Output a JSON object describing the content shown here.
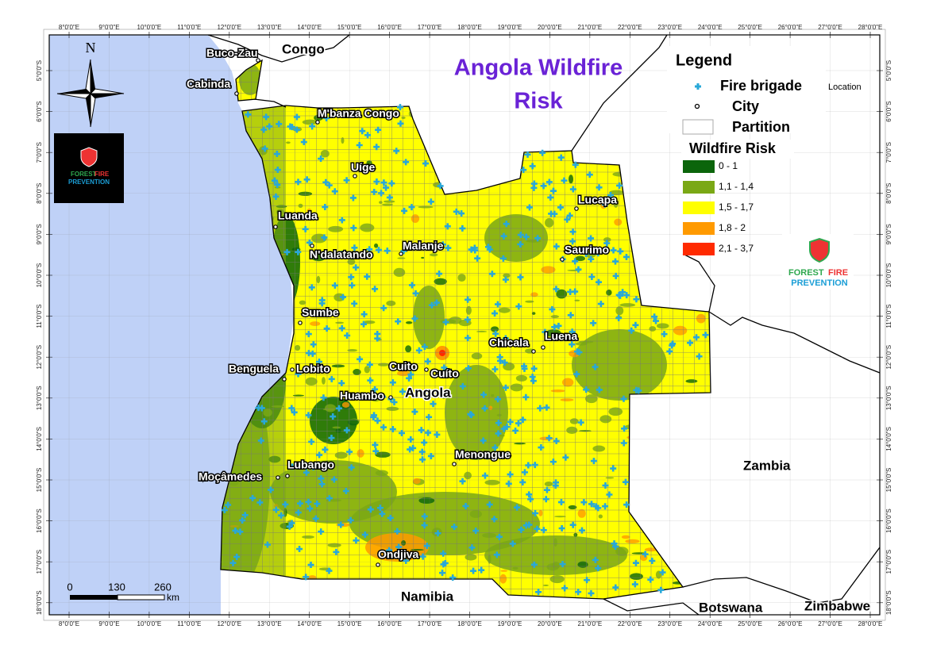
{
  "title_lines": [
    "Angola  Wildfire",
    "Risk"
  ],
  "legend": {
    "title": "Legend",
    "symbols": [
      {
        "label": "Fire brigade",
        "note": "Location"
      },
      {
        "label": "City"
      },
      {
        "label": "Partition"
      }
    ],
    "risk_title": "Wildfire Risk",
    "risk_classes": [
      {
        "label": "0 - 1",
        "color": "#0b650b"
      },
      {
        "label": "1,1 - 1,4",
        "color": "#7aa815"
      },
      {
        "label": "1,5 - 1,7",
        "color": "#ffff00"
      },
      {
        "label": "1,8 - 2",
        "color": "#ff9a00"
      },
      {
        "label": "2,1 - 3,7",
        "color": "#ff2a00"
      }
    ]
  },
  "cities": [
    "Buco-Zau",
    "Cabinda",
    "M'banza Congo",
    "Uíge",
    "Luanda",
    "N'dalatando",
    "Malanje",
    "Lucapa",
    "Saurimo",
    "Sumbe",
    "Benguela",
    "Lobito",
    "Cuito",
    "Cuíto",
    "Chicala",
    "Luena",
    "Huambo",
    "Menongue",
    "Lubango",
    "Moçâmedes",
    "Ondjiva"
  ],
  "countries": [
    "Congo",
    "Angola",
    "Zambia",
    "Namibia",
    "Botswana",
    "Zimbabwe"
  ],
  "lon_ticks": [
    "8°0'0\"E",
    "9°0'0\"E",
    "10°0'0\"E",
    "11°0'0\"E",
    "12°0'0\"E",
    "13°0'0\"E",
    "14°0'0\"E",
    "15°0'0\"E",
    "16°0'0\"E",
    "17°0'0\"E",
    "18°0'0\"E",
    "19°0'0\"E",
    "20°0'0\"E",
    "21°0'0\"E",
    "22°0'0\"E",
    "23°0'0\"E",
    "24°0'0\"E",
    "25°0'0\"E",
    "26°0'0\"E",
    "27°0'0\"E",
    "28°0'0\"E"
  ],
  "lat_ticks": [
    "5°0'0\"S",
    "6°0'0\"S",
    "7°0'0\"S",
    "8°0'0\"S",
    "9°0'0\"S",
    "10°0'0\"S",
    "11°0'0\"S",
    "12°0'0\"S",
    "13°0'0\"S",
    "14°0'0\"S",
    "15°0'0\"S",
    "16°0'0\"S",
    "17°0'0\"S",
    "18°0'0\"S"
  ],
  "scale": {
    "labels": [
      "0",
      "130",
      "260"
    ],
    "unit": "km"
  },
  "north": "N",
  "logo": {
    "word1": "FOREST",
    "word2": "FIRE",
    "word3": "PREVENTION"
  }
}
